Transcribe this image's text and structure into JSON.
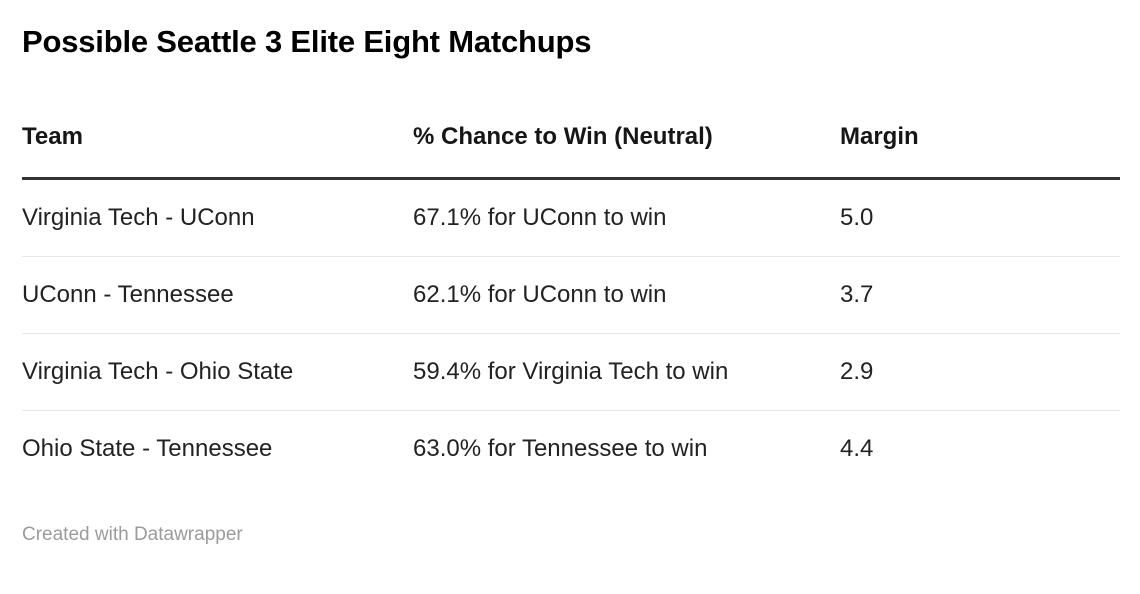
{
  "title": "Possible Seattle 3 Elite Eight Matchups",
  "table": {
    "columns": [
      {
        "label": "Team",
        "align": "left"
      },
      {
        "label": "% Chance to Win (Neutral)",
        "align": "left"
      },
      {
        "label": "Margin",
        "align": "center"
      }
    ],
    "rows": [
      {
        "team": "Virginia Tech - UConn",
        "chance": "67.1% for UConn to win",
        "margin": "5.0"
      },
      {
        "team": "UConn - Tennessee",
        "chance": "62.1% for UConn to win",
        "margin": "3.7"
      },
      {
        "team": "Virginia Tech - Ohio State",
        "chance": "59.4% for Virginia Tech to win",
        "margin": "2.9"
      },
      {
        "team": "Ohio State - Tennessee",
        "chance": "63.0% for Tennessee to win",
        "margin": "4.4"
      }
    ]
  },
  "footer": {
    "attribution": "Created with Datawrapper"
  },
  "colors": {
    "background": "#ffffff",
    "title_text": "#000000",
    "header_text": "#161616",
    "body_text": "#222222",
    "header_rule": "#333333",
    "row_divider": "#e8e8e8",
    "footer_text": "#9b9b9b"
  },
  "chart_data": {
    "type": "table",
    "title": "Possible Seattle 3 Elite Eight Matchups",
    "columns": [
      "Team",
      "% Chance to Win (Neutral)",
      "Margin"
    ],
    "rows": [
      [
        "Virginia Tech - UConn",
        "67.1% for UConn to win",
        5.0
      ],
      [
        "UConn - Tennessee",
        "62.1% for UConn to win",
        3.7
      ],
      [
        "Virginia Tech - Ohio State",
        "59.4% for Virginia Tech to win",
        2.9
      ],
      [
        "Ohio State - Tennessee",
        "63.0% for Tennessee to win",
        4.4
      ]
    ],
    "matchups": [
      {
        "matchup": "Virginia Tech - UConn",
        "favorite": "UConn",
        "win_probability_pct": 67.1,
        "margin": 5.0
      },
      {
        "matchup": "UConn - Tennessee",
        "favorite": "UConn",
        "win_probability_pct": 62.1,
        "margin": 3.7
      },
      {
        "matchup": "Virginia Tech - Ohio State",
        "favorite": "Virginia Tech",
        "win_probability_pct": 59.4,
        "margin": 2.9
      },
      {
        "matchup": "Ohio State - Tennessee",
        "favorite": "Tennessee",
        "win_probability_pct": 63.0,
        "margin": 4.4
      }
    ],
    "attribution": "Created with Datawrapper",
    "layout": {
      "grid": "horizontal row dividers",
      "header_rule": "thick",
      "margin_column_align": "center"
    }
  }
}
